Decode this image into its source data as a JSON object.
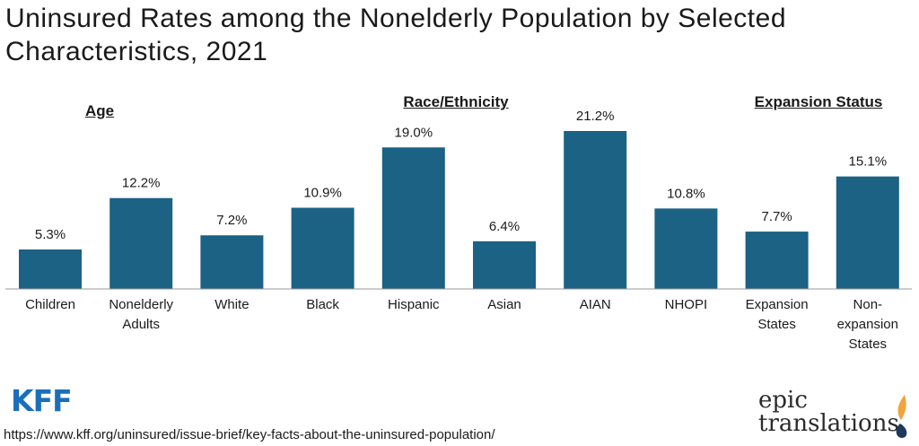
{
  "chart_data": {
    "type": "bar",
    "title": "Uninsured Rates among the Nonelderly Population by Selected Characteristics, 2021",
    "categories": [
      "Children",
      "Nonelderly Adults",
      "White",
      "Black",
      "Hispanic",
      "Asian",
      "AIAN",
      "NHOPI",
      "Expansion States",
      "Non-expansion States"
    ],
    "category_lines": [
      [
        "Children"
      ],
      [
        "Nonelderly",
        "Adults"
      ],
      [
        "White"
      ],
      [
        "Black"
      ],
      [
        "Hispanic"
      ],
      [
        "Asian"
      ],
      [
        "AIAN"
      ],
      [
        "NHOPI"
      ],
      [
        "Expansion",
        "States"
      ],
      [
        "Non-",
        "expansion",
        "States"
      ]
    ],
    "values": [
      5.3,
      12.2,
      7.2,
      10.9,
      19.0,
      6.4,
      21.2,
      10.8,
      7.7,
      15.1
    ],
    "value_labels": [
      "5.3%",
      "12.2%",
      "7.2%",
      "10.9%",
      "19.0%",
      "6.4%",
      "21.2%",
      "10.8%",
      "7.7%",
      "15.1%"
    ],
    "groups": [
      {
        "label": "Age",
        "categories": [
          "Children",
          "Nonelderly Adults"
        ]
      },
      {
        "label": "Race/Ethnicity",
        "categories": [
          "White",
          "Black",
          "Hispanic",
          "Asian",
          "AIAN",
          "NHOPI"
        ]
      },
      {
        "label": "Expansion Status",
        "categories": [
          "Expansion States",
          "Non-expansion States"
        ]
      }
    ],
    "ylim": [
      0,
      21.2
    ],
    "xlabel": "",
    "ylabel": "",
    "grid": false,
    "bar_color": "#1b6284"
  },
  "source": {
    "logo": "KFF",
    "url": "https://www.kff.org/uninsured/issue-brief/key-facts-about-the-uninsured-population/"
  },
  "branding": {
    "line1": "epic",
    "line2": "translations"
  },
  "colors": {
    "kff_blue": "#1a6fb8",
    "drop_orange": "#f2a33a",
    "drop_navy": "#1b3a5c"
  }
}
